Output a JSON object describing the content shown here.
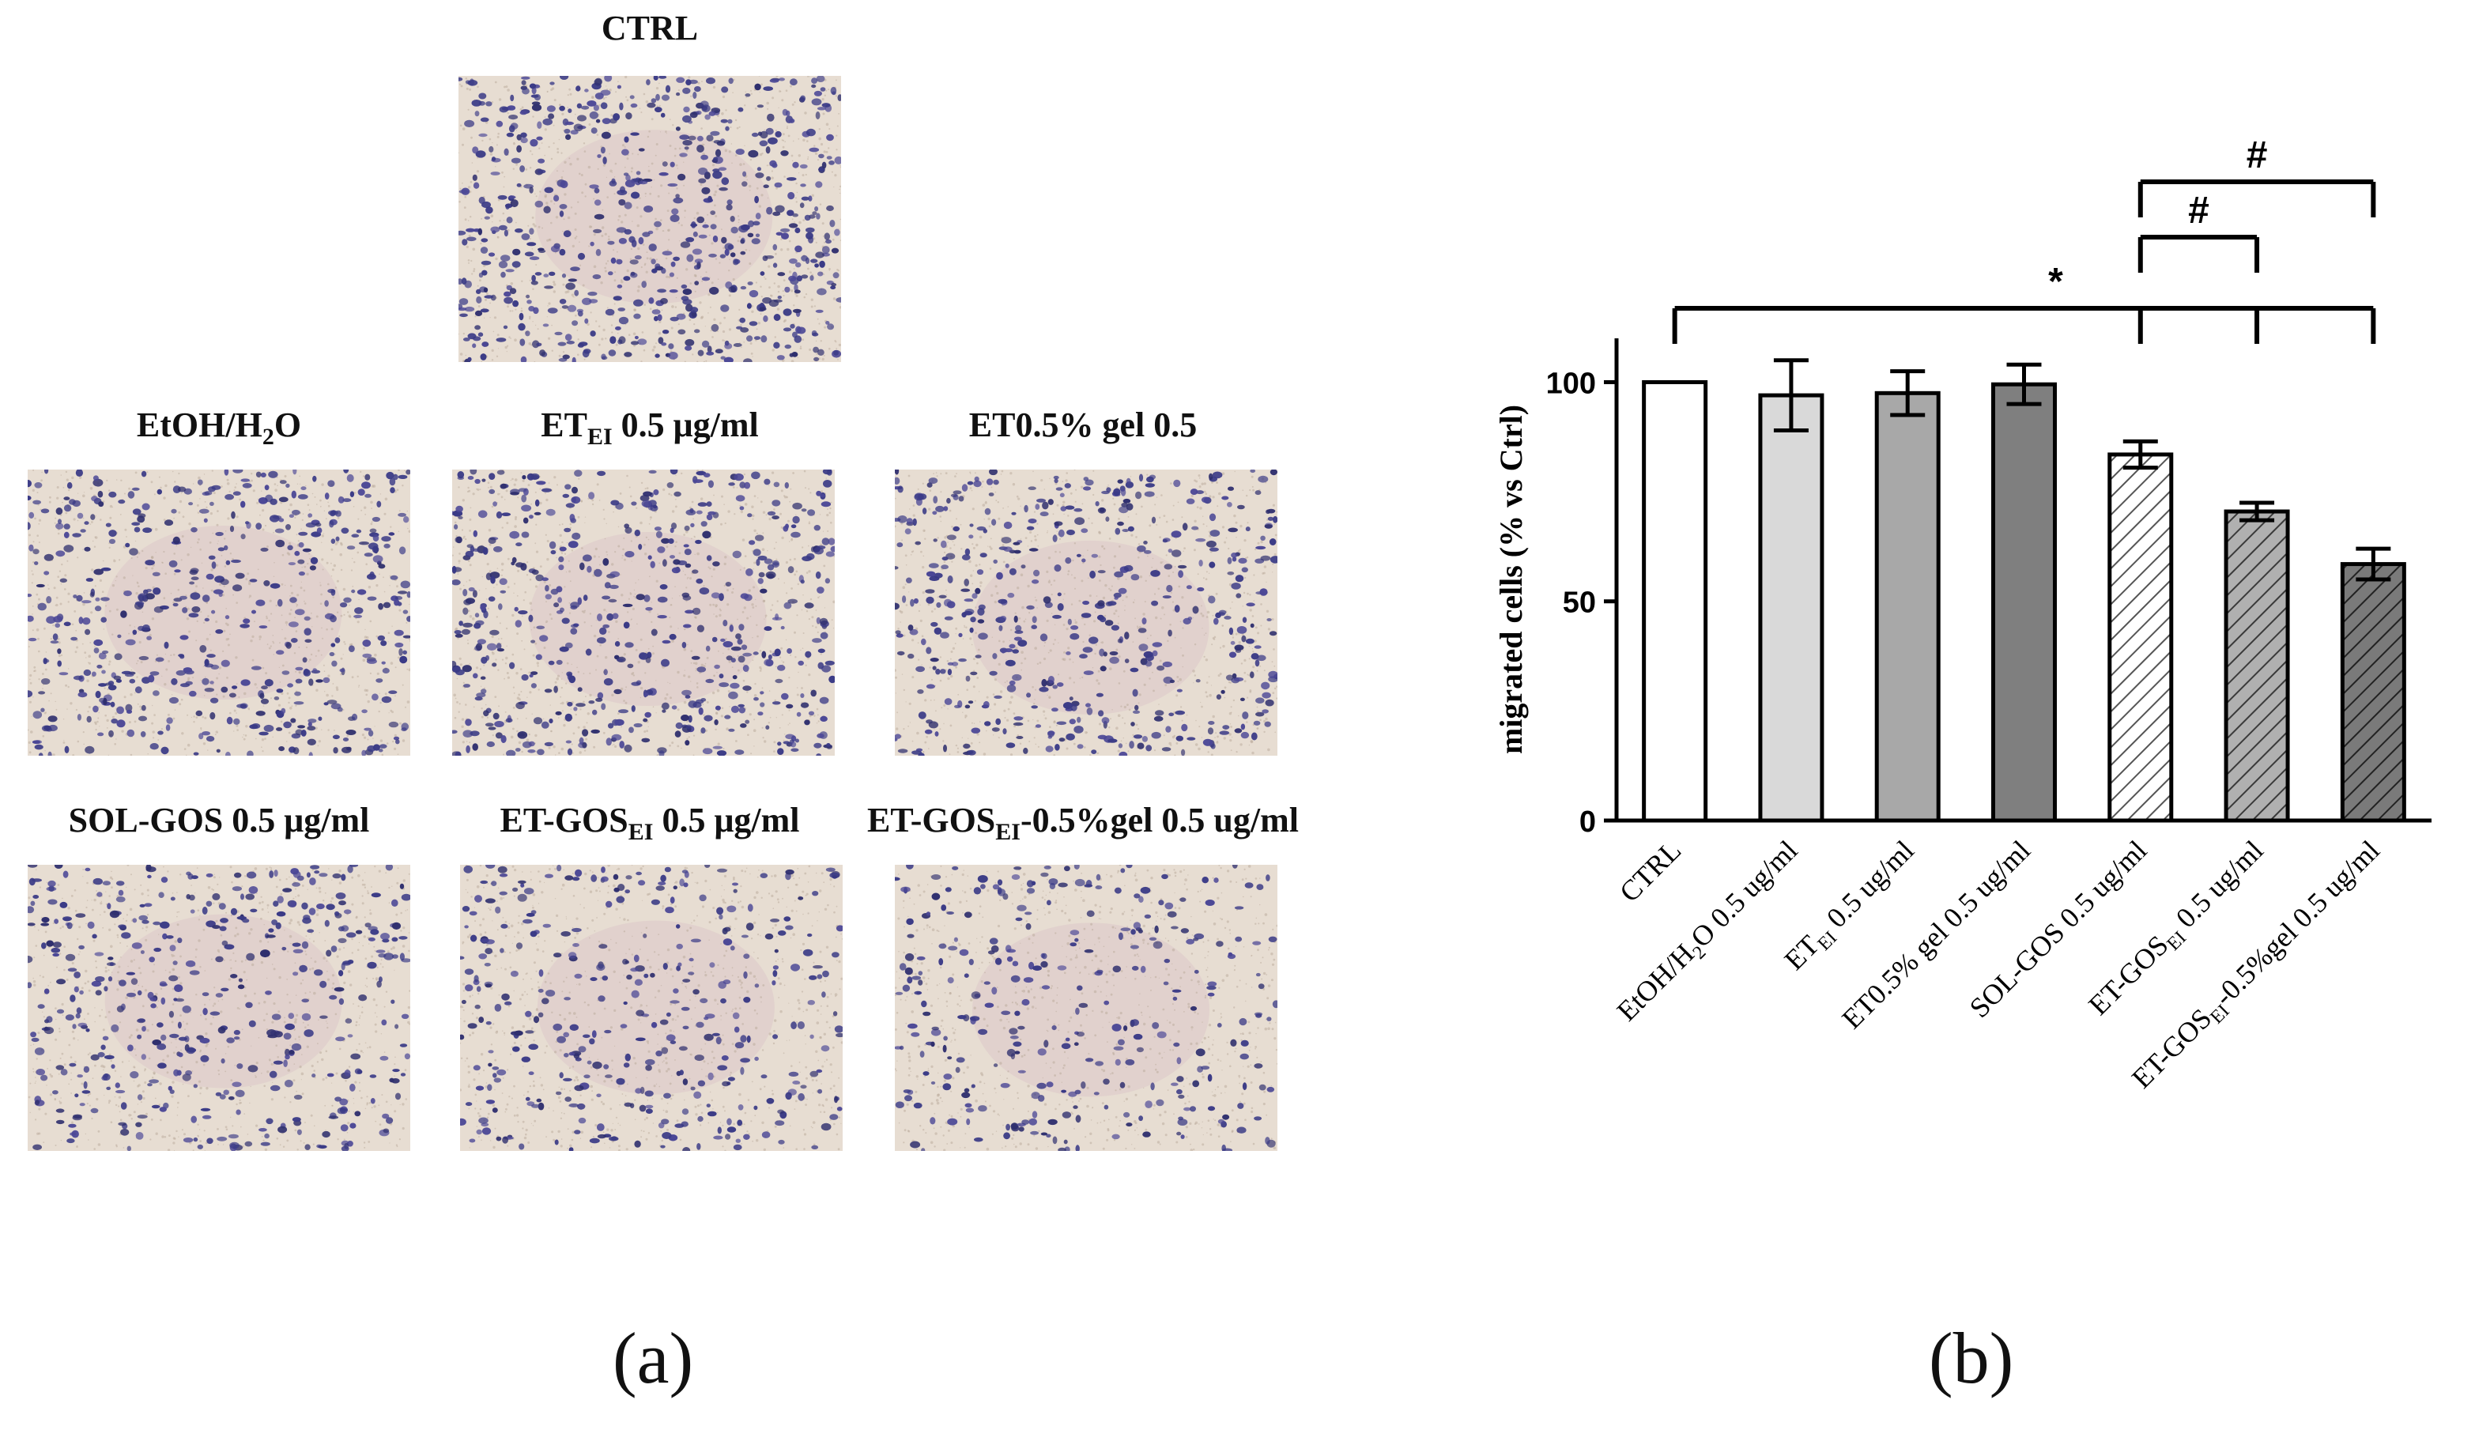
{
  "panel_a": {
    "label": "(a)",
    "images": [
      {
        "id": "ctrl",
        "title": "CTRL"
      },
      {
        "id": "etoh",
        "title_pre": "EtOH/H",
        "title_sub": "2",
        "title_post": "O"
      },
      {
        "id": "etei",
        "title_pre": "ET",
        "title_sub": "EI",
        "title_post": " 0.5 μg/ml"
      },
      {
        "id": "et05",
        "title_pre": "ET0.5% gel 0.5",
        "title_sub": "",
        "title_post": ""
      },
      {
        "id": "solgos",
        "title_pre": "SOL-GOS 0.5 μg/ml",
        "title_sub": "",
        "title_post": ""
      },
      {
        "id": "etgos",
        "title_pre": "ET-GOS",
        "title_sub": "EI",
        "title_post": " 0.5 μg/ml"
      },
      {
        "id": "etgosgel",
        "title_pre": "ET-GOS",
        "title_sub": "EI",
        "title_post": "-0.5%gel 0.5 ug/ml"
      }
    ]
  },
  "panel_b": {
    "label": "(b)"
  },
  "chart_data": {
    "type": "bar",
    "title": "",
    "xlabel": "",
    "ylabel": "migrated cells (% vs Ctrl)",
    "ylim": [
      0,
      100
    ],
    "yticks": [
      0,
      50,
      100
    ],
    "categories": [
      "CTRL",
      "EtOH/H2O 0.5 ug/ml",
      "ETEI 0.5 ug/ml",
      "ET0.5% gel 0.5 ug/ml",
      "SOL-GOS 0.5 ug/ml",
      "ET-GOSEI 0.5 ug/ml",
      "ET-GOSEI-0.5%gel 0.5 ug/ml"
    ],
    "category_parts": [
      {
        "pre": "CTRL",
        "sub": "",
        "post": ""
      },
      {
        "pre": "EtOH/H",
        "sub": "2",
        "post": "O 0.5 ug/ml"
      },
      {
        "pre": "ET",
        "sub": "EI",
        "post": " 0.5 ug/ml"
      },
      {
        "pre": "ET0.5% gel 0.5 ug/ml",
        "sub": "",
        "post": ""
      },
      {
        "pre": "SOL-GOS 0.5 ug/ml",
        "sub": "",
        "post": ""
      },
      {
        "pre": "ET-GOS",
        "sub": "EI",
        "post": " 0.5 ug/ml"
      },
      {
        "pre": "ET-GOS",
        "sub": "EI",
        "post": "-0.5%gel 0.5 ug/ml"
      }
    ],
    "values": [
      100,
      97,
      97.5,
      99.5,
      83.5,
      70.5,
      58.5
    ],
    "errors": [
      0,
      8,
      5,
      4.5,
      3,
      2,
      3.5
    ],
    "fills": [
      "#ffffff",
      "#d9d9d9",
      "#a8a8a8",
      "#7f7f7f",
      "#ffffff",
      "#9a9a9a",
      "#666666"
    ],
    "hatched": [
      false,
      false,
      false,
      false,
      true,
      true,
      true
    ],
    "significance": [
      {
        "symbol": "*",
        "from": 0,
        "to": [
          4,
          5,
          6
        ]
      },
      {
        "symbol": "#",
        "from": 4,
        "to": [
          5
        ]
      },
      {
        "symbol": "#",
        "from": 4,
        "to": [
          6
        ]
      }
    ]
  }
}
